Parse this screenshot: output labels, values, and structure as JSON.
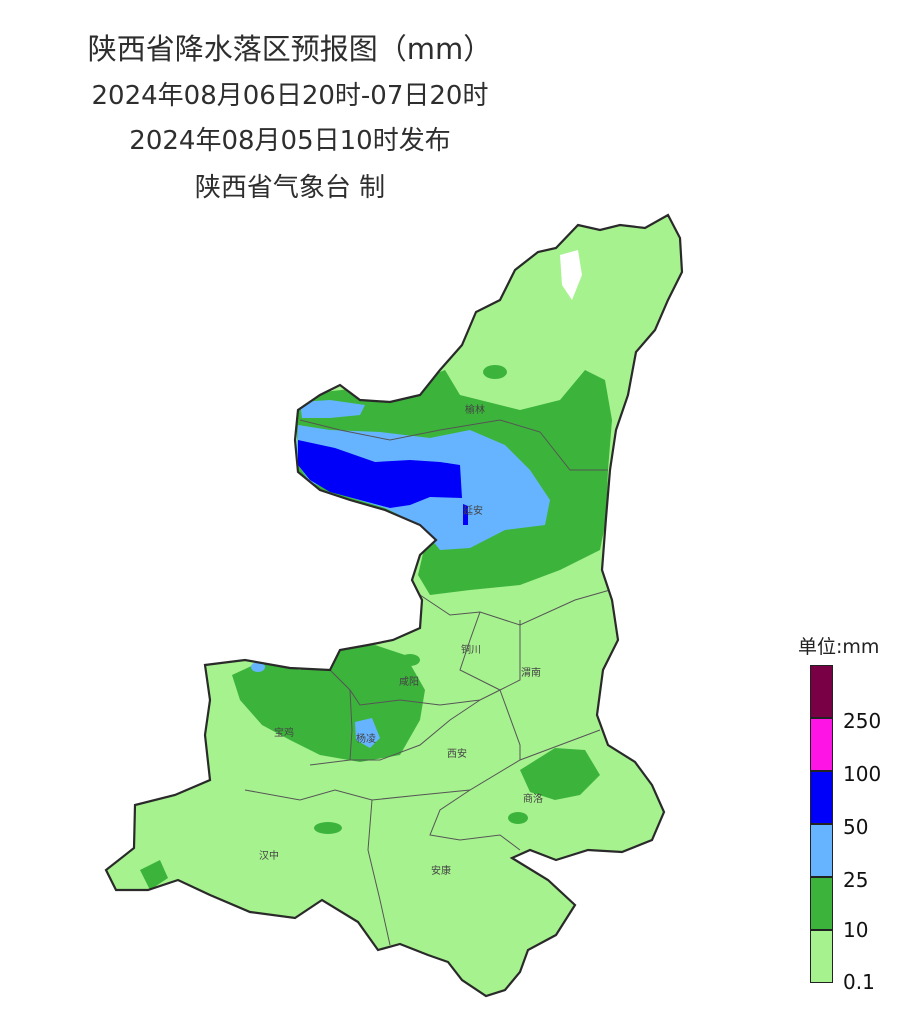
{
  "title": {
    "line1": "陕西省降水落区预报图（mm）",
    "line2": "2024年08月06日20时-07日20时",
    "line3": "2024年08月05日10时发布",
    "line4": "陕西省气象台 制"
  },
  "cities": {
    "yulin": "榆林",
    "yanan": "延安",
    "tongchuan": "铜川",
    "weinan": "渭南",
    "xianyang": "咸阳",
    "baoji": "宝鸡",
    "yangling": "杨凌",
    "xian": "西安",
    "shangluo": "商洛",
    "hanzhong": "汉中",
    "ankang": "安康"
  },
  "legend": {
    "title": "单位:mm",
    "ticks": [
      "250",
      "100",
      "50",
      "25",
      "10",
      "0.1"
    ],
    "colors": {
      "over_250": "#7a0046",
      "100_250": "#ff14e6",
      "50_100": "#0000fa",
      "25_50": "#66b4ff",
      "10_25": "#3cb43c",
      "0.1_10": "#a6f28e"
    }
  }
}
